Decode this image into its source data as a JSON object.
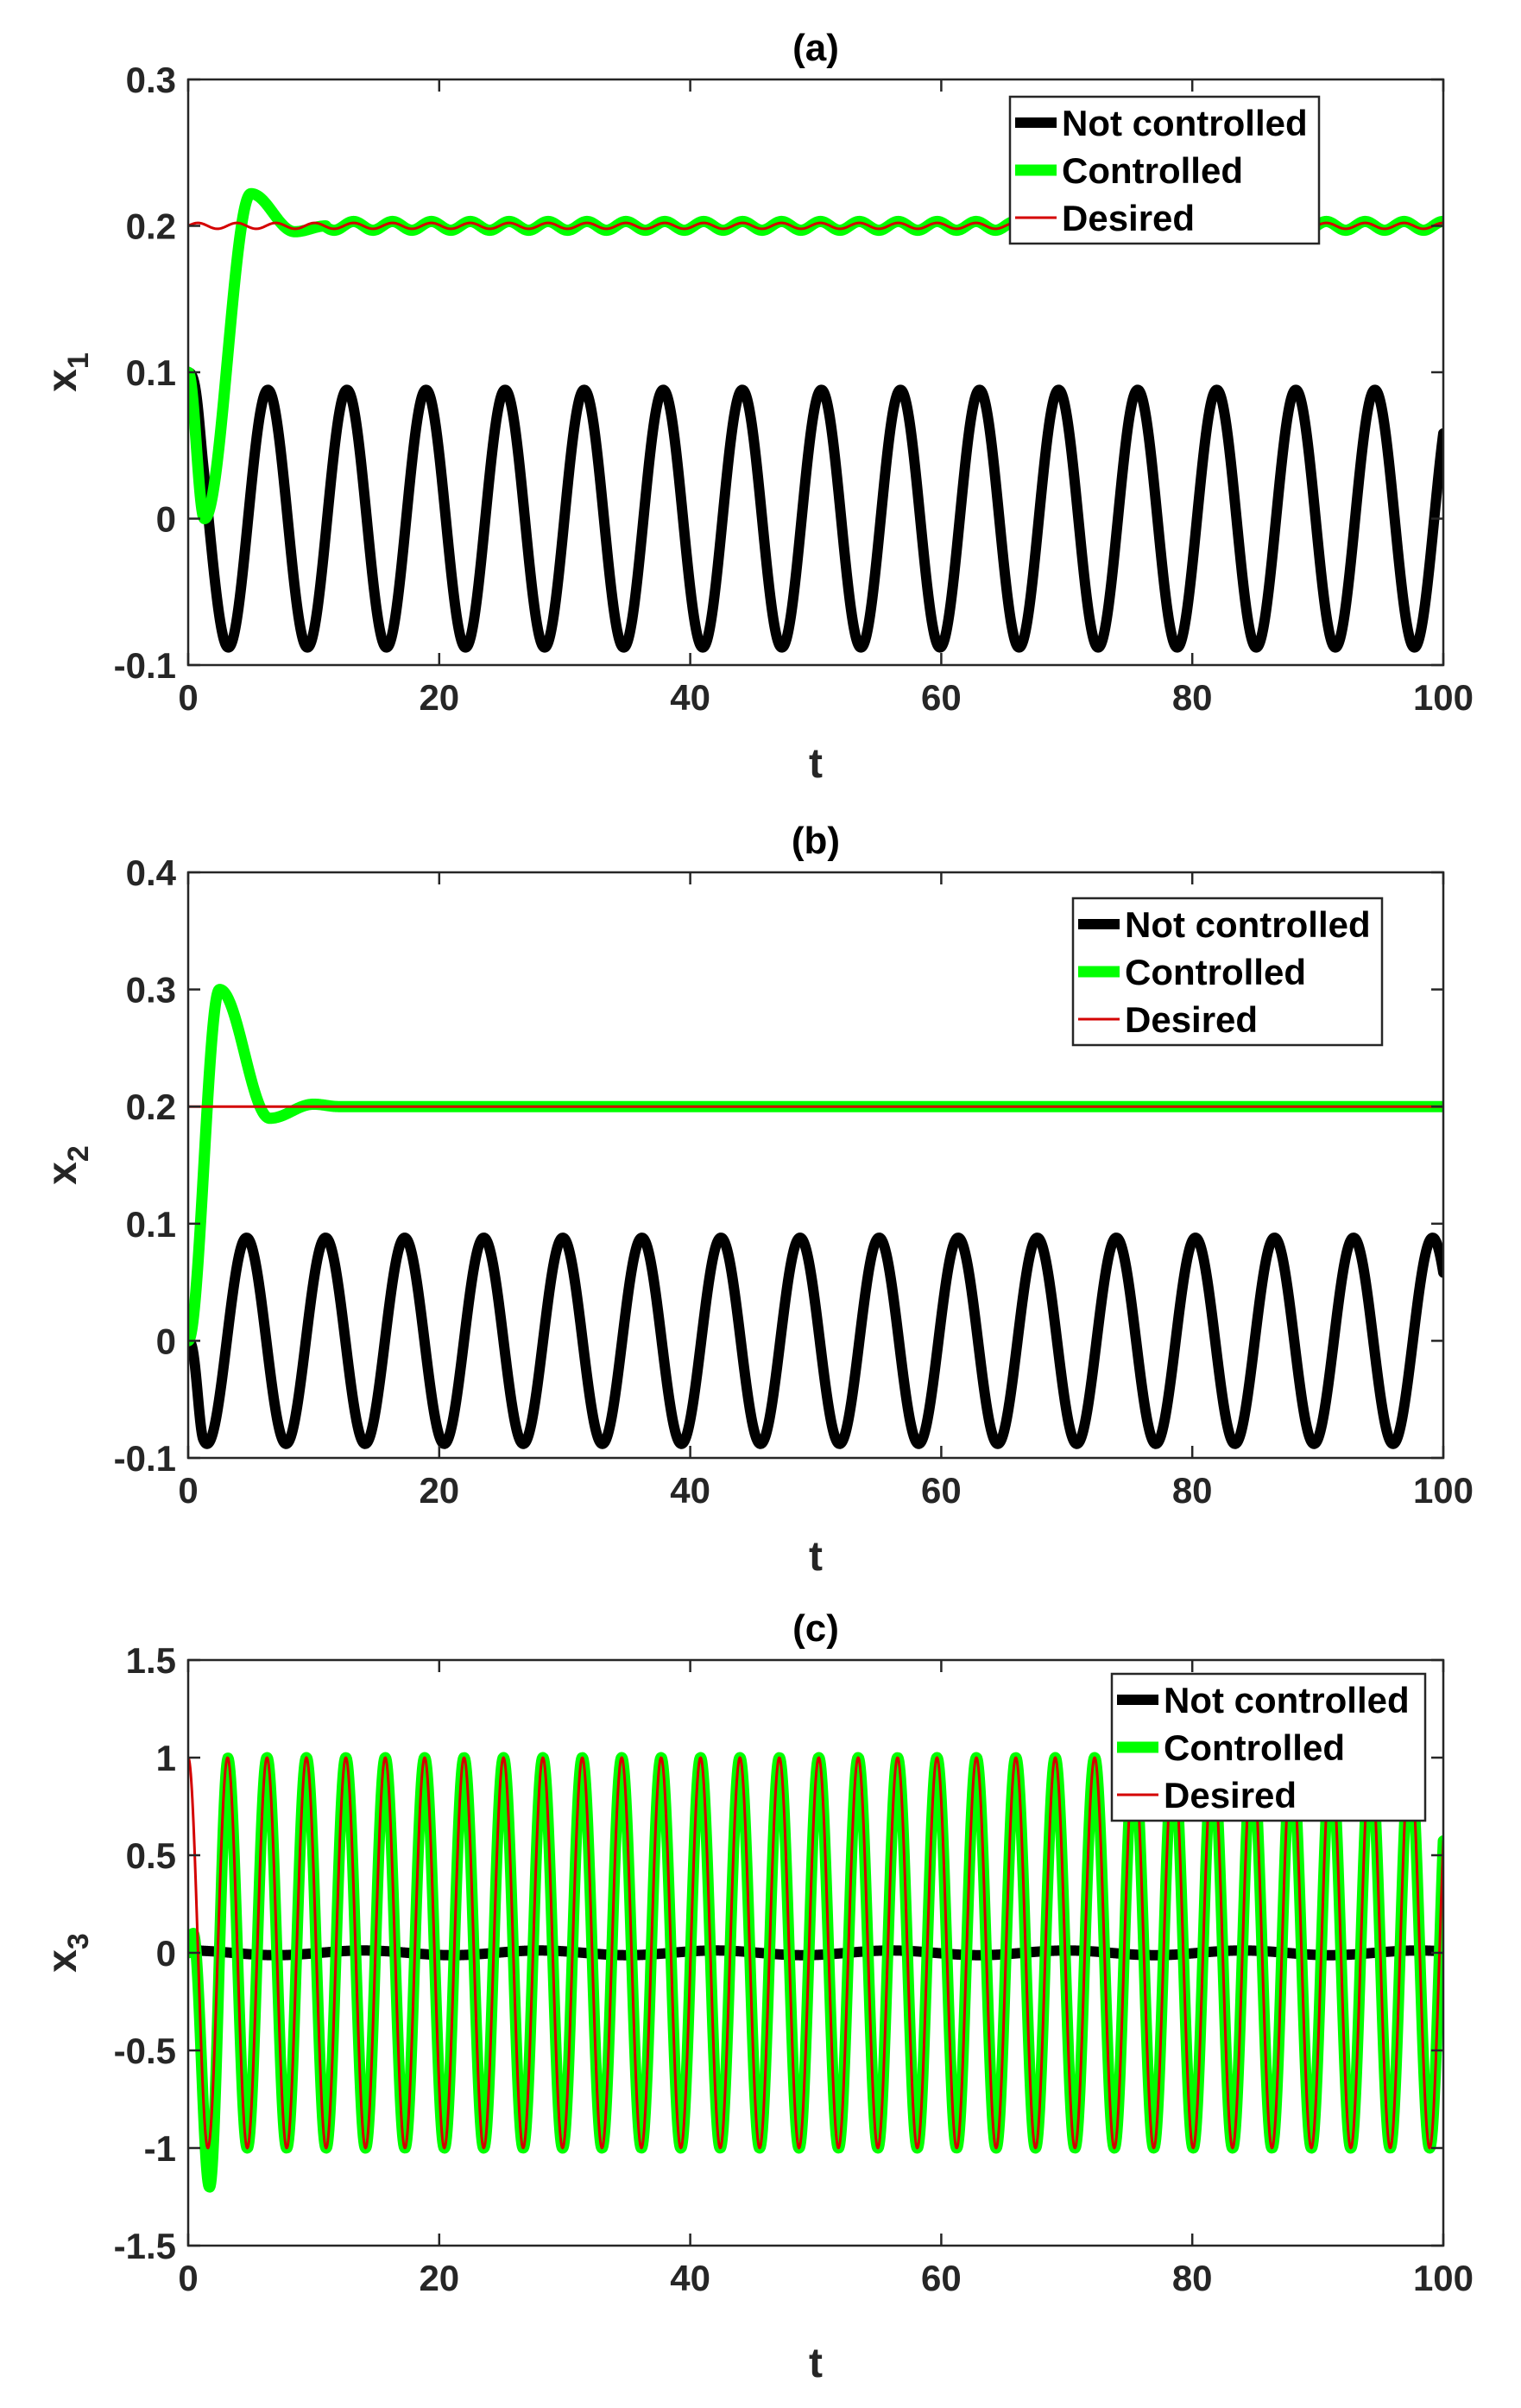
{
  "colors": {
    "not_controlled": "#000000",
    "controlled": "#00ff00",
    "desired": "#d40000",
    "axis": "#262626"
  },
  "chart_data": [
    {
      "type": "line",
      "title": "(a)",
      "xlabel": "t",
      "ylabel_base": "x",
      "ylabel_sub": "1",
      "xlim": [
        0,
        100
      ],
      "ylim": [
        -0.1,
        0.3
      ],
      "xticks": [
        0,
        20,
        40,
        60,
        80,
        100
      ],
      "xtick_labels": [
        "0",
        "20",
        "40",
        "60",
        "80",
        "100"
      ],
      "yticks": [
        -0.1,
        0,
        0.1,
        0.2,
        0.3
      ],
      "ytick_labels": [
        "-0.1",
        "0",
        "0.1",
        "0.2",
        "0.3"
      ],
      "legend_position": "top-right",
      "series": [
        {
          "name": "Not controlled",
          "color": "#000000",
          "model": {
            "base": 0,
            "amp": 0.088,
            "period": 6.3,
            "phase_t": 3.2,
            "phase_value": -0.095,
            "start": 0.1
          }
        },
        {
          "name": "Controlled",
          "color": "#00ff00",
          "model": {
            "target": 0.2,
            "points": [
              [
                0,
                0.1
              ],
              [
                1.3,
                0.0
              ],
              [
                5,
                0.222
              ],
              [
                8.5,
                0.196
              ],
              [
                11,
                0.2
              ]
            ],
            "ripple": 0.003,
            "ripple_period": 3.1
          }
        },
        {
          "name": "Desired",
          "color": "#d40000",
          "model": {
            "target": 0.2,
            "ripple": 0.002,
            "ripple_period": 3.1
          }
        }
      ]
    },
    {
      "type": "line",
      "title": "(b)",
      "xlabel": "t",
      "ylabel_base": "x",
      "ylabel_sub": "2",
      "xlim": [
        0,
        100
      ],
      "ylim": [
        -0.1,
        0.4
      ],
      "xticks": [
        0,
        20,
        40,
        60,
        80,
        100
      ],
      "xtick_labels": [
        "0",
        "20",
        "40",
        "60",
        "80",
        "100"
      ],
      "yticks": [
        -0.1,
        0,
        0.1,
        0.2,
        0.3,
        0.4
      ],
      "ytick_labels": [
        "-0.1",
        "0",
        "0.1",
        "0.2",
        "0.3",
        "0.4"
      ],
      "legend_position": "top-right",
      "series": [
        {
          "name": "Not controlled",
          "color": "#000000",
          "model": {
            "base": 0,
            "amp": 0.088,
            "period": 6.3,
            "phase_t": 1.5,
            "phase_value": -0.095,
            "start": 0
          }
        },
        {
          "name": "Controlled",
          "color": "#00ff00",
          "model": {
            "target": 0.2,
            "points": [
              [
                0,
                0.0
              ],
              [
                2.5,
                0.3
              ],
              [
                6.5,
                0.19
              ],
              [
                10,
                0.202
              ],
              [
                12,
                0.2
              ]
            ],
            "ripple": 0.0,
            "ripple_period": 3.1
          }
        },
        {
          "name": "Desired",
          "color": "#d40000",
          "model": {
            "target": 0.2,
            "ripple": 0.0,
            "ripple_period": 3.1
          }
        }
      ]
    },
    {
      "type": "line",
      "title": "(c)",
      "xlabel": "t",
      "ylabel_base": "x",
      "ylabel_sub": "3",
      "xlim": [
        0,
        100
      ],
      "ylim": [
        -1.5,
        1.5
      ],
      "xticks": [
        0,
        20,
        40,
        60,
        80,
        100
      ],
      "xtick_labels": [
        "0",
        "20",
        "40",
        "60",
        "80",
        "100"
      ],
      "yticks": [
        -1.5,
        -1,
        -0.5,
        0,
        0.5,
        1,
        1.5
      ],
      "ytick_labels": [
        "-1.5",
        "-1",
        "-0.5",
        "0",
        "0.5",
        "1",
        "1.5"
      ],
      "legend_position": "top-right",
      "series": [
        {
          "name": "Not controlled",
          "color": "#000000",
          "model": {
            "base": 0,
            "amp": 0.012,
            "period": 14,
            "phase_t": 0,
            "phase_value": 0.012,
            "start": 0.02
          }
        },
        {
          "name": "Controlled",
          "color": "#00ff00",
          "model": {
            "amp": 1.0,
            "period": 3.14,
            "points": [
              [
                0,
                0.0
              ],
              [
                0.4,
                0.1
              ],
              [
                1.7,
                -1.2
              ],
              [
                3.2,
                1.0
              ]
            ],
            "settle_t": 3.2
          }
        },
        {
          "name": "Desired",
          "color": "#d40000",
          "model": {
            "amp": 1.0,
            "period": 3.14
          }
        }
      ]
    }
  ]
}
